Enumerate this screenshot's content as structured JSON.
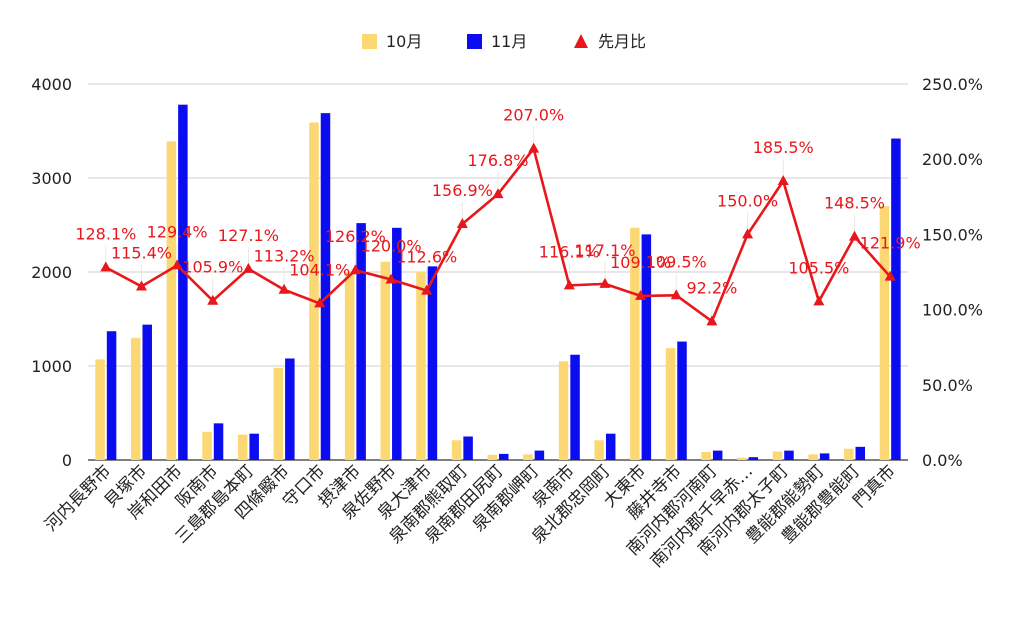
{
  "chart_data": {
    "type": "bar",
    "categories": [
      "河内長野市",
      "貝塚市",
      "岸和田市",
      "阪南市",
      "三島郡島本町",
      "四條畷市",
      "守口市",
      "摂津市",
      "泉佐野市",
      "泉大津市",
      "泉南郡熊取町",
      "泉南郡田尻町",
      "泉南郡岬町",
      "泉南市",
      "泉北郡忠岡町",
      "大東市",
      "藤井寺市",
      "南河内郡河南町",
      "南河内郡千早赤…",
      "南河内郡太子町",
      "豊能郡能勢町",
      "豊能郡豊能町",
      "門真市"
    ],
    "series": [
      {
        "name": "10月",
        "type": "bar",
        "axis": "left",
        "color": "#fcd874",
        "values": [
          1070,
          1300,
          3390,
          300,
          270,
          980,
          3590,
          2000,
          2110,
          2000,
          210,
          55,
          60,
          1050,
          210,
          2470,
          1190,
          85,
          25,
          90,
          60,
          120,
          2700
        ]
      },
      {
        "name": "11月",
        "type": "bar",
        "axis": "left",
        "color": "#0b0df0",
        "values": [
          1370,
          1440,
          3780,
          390,
          280,
          1080,
          3690,
          2520,
          2470,
          2060,
          250,
          65,
          100,
          1120,
          280,
          2400,
          1260,
          100,
          30,
          100,
          70,
          140,
          3420
        ]
      },
      {
        "name": "先月比",
        "type": "line",
        "axis": "right",
        "color": "#e8171b",
        "values": [
          128.1,
          115.4,
          129.4,
          105.9,
          127.1,
          113.2,
          104.1,
          126.2,
          120.0,
          112.6,
          156.9,
          176.8,
          207.0,
          116.1,
          117.1,
          109.1,
          109.5,
          92.2,
          150.0,
          185.5,
          105.5,
          148.5,
          121.9
        ],
        "labels": [
          "128.1%",
          "115.4%",
          "129.4%",
          "105.9%",
          "127.1%",
          "113.2%",
          "104.1%",
          "126.2%",
          "120.0%",
          "112.6%",
          "156.9%",
          "176.8%",
          "207.0%",
          "116.1%",
          "117.1%",
          "109.1%",
          "109.5%",
          "92.2%",
          "150.0%",
          "185.5%",
          "105.5%",
          "148.5%",
          "121.9%"
        ]
      }
    ],
    "left_axis": {
      "ticks": [
        "0",
        "1000",
        "2000",
        "3000",
        "4000"
      ],
      "values": [
        0,
        1000,
        2000,
        3000,
        4000
      ],
      "ylim": [
        0,
        4000
      ]
    },
    "right_axis": {
      "ticks": [
        "0.0%",
        "50.0%",
        "100.0%",
        "150.0%",
        "200.0%",
        "250.0%"
      ],
      "values": [
        0,
        50,
        100,
        150,
        200,
        250
      ],
      "ylim": [
        0,
        250
      ]
    },
    "legend": {
      "position": "top",
      "items": [
        {
          "label": "10月",
          "color": "#fcd874",
          "shape": "square"
        },
        {
          "label": "11月",
          "color": "#0b0df0",
          "shape": "square"
        },
        {
          "label": "先月比",
          "color": "#e8171b",
          "shape": "triangle"
        }
      ]
    },
    "grid": true
  }
}
